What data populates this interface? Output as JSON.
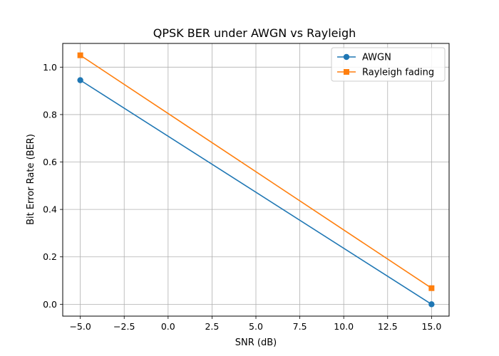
{
  "chart_data": {
    "type": "line",
    "title": "QPSK BER under AWGN vs Rayleigh",
    "xlabel": "SNR (dB)",
    "ylabel": "Bit Error Rate (BER)",
    "xlim": [
      -6,
      16
    ],
    "ylim": [
      -0.05,
      1.1
    ],
    "xticks": [
      -5.0,
      -2.5,
      0.0,
      2.5,
      5.0,
      7.5,
      10.0,
      12.5,
      15.0
    ],
    "xtick_labels": [
      "−5.0",
      "−2.5",
      "0.0",
      "2.5",
      "5.0",
      "7.5",
      "10.0",
      "12.5",
      "15.0"
    ],
    "yticks": [
      0.0,
      0.2,
      0.4,
      0.6,
      0.8,
      1.0
    ],
    "ytick_labels": [
      "0.0",
      "0.2",
      "0.4",
      "0.6",
      "0.8",
      "1.0"
    ],
    "grid": true,
    "legend_position": "top-right",
    "series": [
      {
        "name": "AWGN",
        "color": "#1f77b4",
        "marker": "circle",
        "x": [
          -5,
          15
        ],
        "y": [
          0.945,
          0.0
        ]
      },
      {
        "name": "Rayleigh fading",
        "color": "#ff7f0e",
        "marker": "square",
        "x": [
          -5,
          15
        ],
        "y": [
          1.05,
          0.068
        ]
      }
    ]
  }
}
